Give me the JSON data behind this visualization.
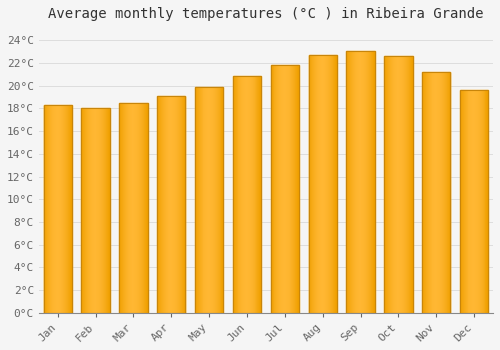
{
  "title": "Average monthly temperatures (°C ) in Ribeira Grande",
  "months": [
    "Jan",
    "Feb",
    "Mar",
    "Apr",
    "May",
    "Jun",
    "Jul",
    "Aug",
    "Sep",
    "Oct",
    "Nov",
    "Dec"
  ],
  "temperatures": [
    18.3,
    18.0,
    18.5,
    19.1,
    19.9,
    20.9,
    21.8,
    22.7,
    23.1,
    22.6,
    21.2,
    19.6
  ],
  "bar_color_center": "#FFB733",
  "bar_color_edge": "#F5A000",
  "bar_edge_color": "#C8850A",
  "ylim": [
    0,
    25
  ],
  "ytick_step": 2,
  "background_color": "#f5f5f5",
  "plot_bg_color": "#f5f5f5",
  "grid_color": "#dddddd",
  "title_fontsize": 10,
  "tick_fontsize": 8,
  "title_color": "#333333",
  "tick_color": "#666666",
  "bar_width": 0.75
}
